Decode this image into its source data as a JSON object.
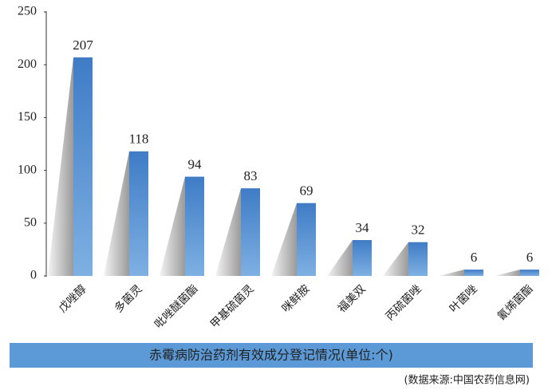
{
  "chart_data": {
    "type": "bar",
    "title": "赤霉病防治药剂有效成分登记情况(单位:个)",
    "source": "(数据来源:中国农药信息网)",
    "categories": [
      "戊唑醇",
      "多菌灵",
      "吡唑醚菌酯",
      "甲基硫菌灵",
      "咪鲜胺",
      "福美双",
      "丙硫菌唑",
      "叶菌唑",
      "氰烯菌酯"
    ],
    "values": [
      207,
      118,
      94,
      83,
      69,
      34,
      32,
      6,
      6
    ],
    "color": "#4a86cb",
    "ylim": [
      0,
      250
    ],
    "yticks": [
      0,
      50,
      100,
      150,
      200,
      250
    ],
    "grid": false
  }
}
